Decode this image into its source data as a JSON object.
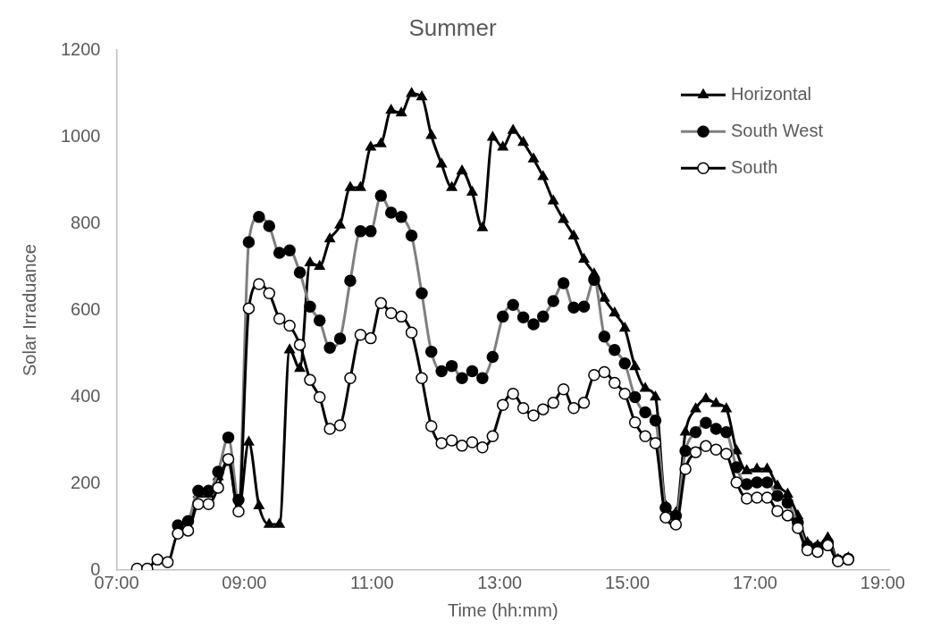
{
  "chart_data": {
    "type": "line",
    "title": "Summer",
    "xlabel": "Time (hh:mm)",
    "ylabel": "Solar Irraduance",
    "x": [
      7.32,
      7.48,
      7.64,
      7.8,
      7.96,
      8.12,
      8.28,
      8.44,
      8.59,
      8.75,
      8.91,
      9.07,
      9.23,
      9.39,
      9.55,
      9.71,
      9.87,
      10.03,
      10.18,
      10.34,
      10.5,
      10.66,
      10.82,
      10.98,
      11.14,
      11.3,
      11.46,
      11.62,
      11.78,
      11.93,
      12.09,
      12.25,
      12.41,
      12.57,
      12.73,
      12.89,
      13.05,
      13.21,
      13.37,
      13.53,
      13.68,
      13.84,
      14.0,
      14.16,
      14.32,
      14.48,
      14.64,
      14.8,
      14.96,
      15.12,
      15.28,
      15.44,
      15.6,
      15.76,
      15.91,
      16.07,
      16.23,
      16.39,
      16.55,
      16.71,
      16.87,
      17.03,
      17.19,
      17.35,
      17.51,
      17.67,
      17.82,
      17.98,
      18.14,
      18.3,
      18.46
    ],
    "series": [
      {
        "name": "Horizontal",
        "color": "#000000",
        "marker": "triangle",
        "values": [
          null,
          null,
          null,
          null,
          90,
          100,
          175,
          175,
          215,
          248,
          135,
          295,
          148,
          105,
          105,
          508,
          465,
          709,
          701,
          764,
          796,
          883,
          883,
          976,
          984,
          1061,
          1055,
          1100,
          1092,
          1003,
          937,
          883,
          921,
          872,
          790,
          999,
          976,
          1015,
          987,
          949,
          908,
          852,
          809,
          771,
          717,
          683,
          627,
          593,
          558,
          469,
          419,
          399,
          148,
          132,
          318,
          372,
          395,
          384,
          372,
          275,
          229,
          233,
          233,
          194,
          175,
          125,
          63,
          56,
          74,
          24,
          28
        ]
      },
      {
        "name": "South West",
        "color": "#7f7f7f",
        "marker": "circle",
        "values": [
          null,
          null,
          null,
          null,
          103,
          113,
          183,
          183,
          227,
          306,
          162,
          757,
          815,
          794,
          732,
          738,
          687,
          608,
          576,
          513,
          534,
          668,
          782,
          782,
          864,
          825,
          815,
          772,
          639,
          504,
          459,
          471,
          443,
          459,
          443,
          492,
          585,
          612,
          583,
          567,
          585,
          621,
          662,
          606,
          608,
          670,
          539,
          508,
          477,
          399,
          364,
          345,
          144,
          125,
          275,
          318,
          340,
          326,
          318,
          237,
          198,
          202,
          202,
          171,
          155,
          109,
          56,
          52,
          63,
          22,
          26
        ]
      },
      {
        "name": "South",
        "color": "#000000",
        "marker": "circle",
        "values": [
          3,
          3,
          24,
          18,
          84,
          91,
          152,
          152,
          190,
          256,
          135,
          604,
          660,
          639,
          580,
          564,
          520,
          439,
          399,
          326,
          334,
          443,
          543,
          535,
          616,
          593,
          585,
          548,
          443,
          332,
          293,
          299,
          287,
          295,
          283,
          309,
          381,
          407,
          374,
          357,
          371,
          386,
          417,
          374,
          386,
          450,
          457,
          432,
          407,
          341,
          309,
          293,
          121,
          105,
          233,
          272,
          286,
          278,
          268,
          202,
          165,
          167,
          167,
          136,
          126,
          97,
          46,
          42,
          57,
          20,
          24
        ]
      }
    ],
    "xlim": [
      7,
      19.1
    ],
    "xticks": [
      {
        "value": 7,
        "label": "07:00"
      },
      {
        "value": 9,
        "label": "09:00"
      },
      {
        "value": 11,
        "label": "11:00"
      },
      {
        "value": 13,
        "label": "13:00"
      },
      {
        "value": 15,
        "label": "15:00"
      },
      {
        "value": 17,
        "label": "17:00"
      },
      {
        "value": 19,
        "label": "19:00"
      }
    ],
    "ylim": [
      0,
      1200
    ],
    "yticks": [
      0,
      200,
      400,
      600,
      800,
      1000,
      1200
    ],
    "grid": false,
    "legend": "top right"
  }
}
